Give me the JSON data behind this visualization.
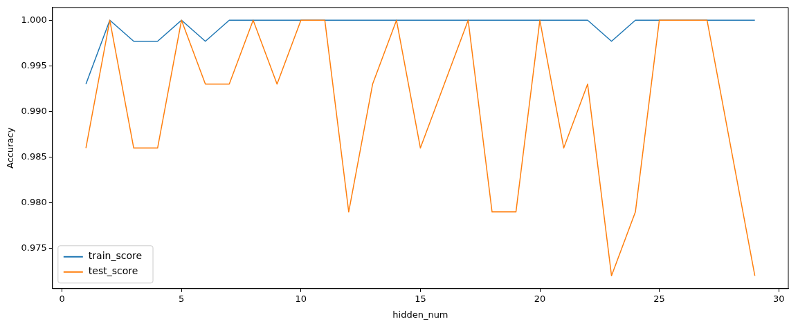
{
  "chart_data": {
    "type": "line",
    "xlabel": "hidden_num",
    "ylabel": "Accuracy",
    "x": [
      1,
      2,
      3,
      4,
      5,
      6,
      7,
      8,
      9,
      10,
      11,
      12,
      13,
      14,
      15,
      16,
      17,
      18,
      19,
      20,
      21,
      22,
      23,
      24,
      25,
      26,
      27,
      28,
      29
    ],
    "series": [
      {
        "name": "train_score",
        "color": "#1f77b4",
        "values": [
          0.993,
          1.0,
          0.9977,
          0.9977,
          1.0,
          0.9977,
          1.0,
          1.0,
          1.0,
          1.0,
          1.0,
          1.0,
          1.0,
          1.0,
          1.0,
          1.0,
          1.0,
          1.0,
          1.0,
          1.0,
          1.0,
          1.0,
          0.9977,
          1.0,
          1.0,
          1.0,
          1.0,
          1.0,
          1.0
        ]
      },
      {
        "name": "test_score",
        "color": "#ff7f0e",
        "values": [
          0.986,
          1.0,
          0.986,
          0.986,
          1.0,
          0.993,
          0.993,
          1.0,
          0.993,
          1.0,
          1.0,
          0.979,
          0.993,
          1.0,
          0.986,
          0.993,
          1.0,
          0.979,
          0.979,
          1.0,
          0.986,
          0.993,
          0.972,
          0.979,
          1.0,
          1.0,
          1.0,
          0.986,
          0.972
        ]
      }
    ],
    "xlim": [
      -0.4,
      30.4
    ],
    "xticks": [
      0,
      5,
      10,
      15,
      20,
      25,
      30
    ],
    "ylim": [
      0.9706,
      1.0014
    ],
    "yticks": [
      {
        "value": 0.975,
        "label": "0.975"
      },
      {
        "value": 0.98,
        "label": "0.980"
      },
      {
        "value": 0.985,
        "label": "0.985"
      },
      {
        "value": 0.99,
        "label": "0.990"
      },
      {
        "value": 0.995,
        "label": "0.995"
      },
      {
        "value": 1.0,
        "label": "1.000"
      }
    ],
    "grid": false,
    "legend": "bottom left",
    "marker": "none",
    "line_style": "solid"
  }
}
